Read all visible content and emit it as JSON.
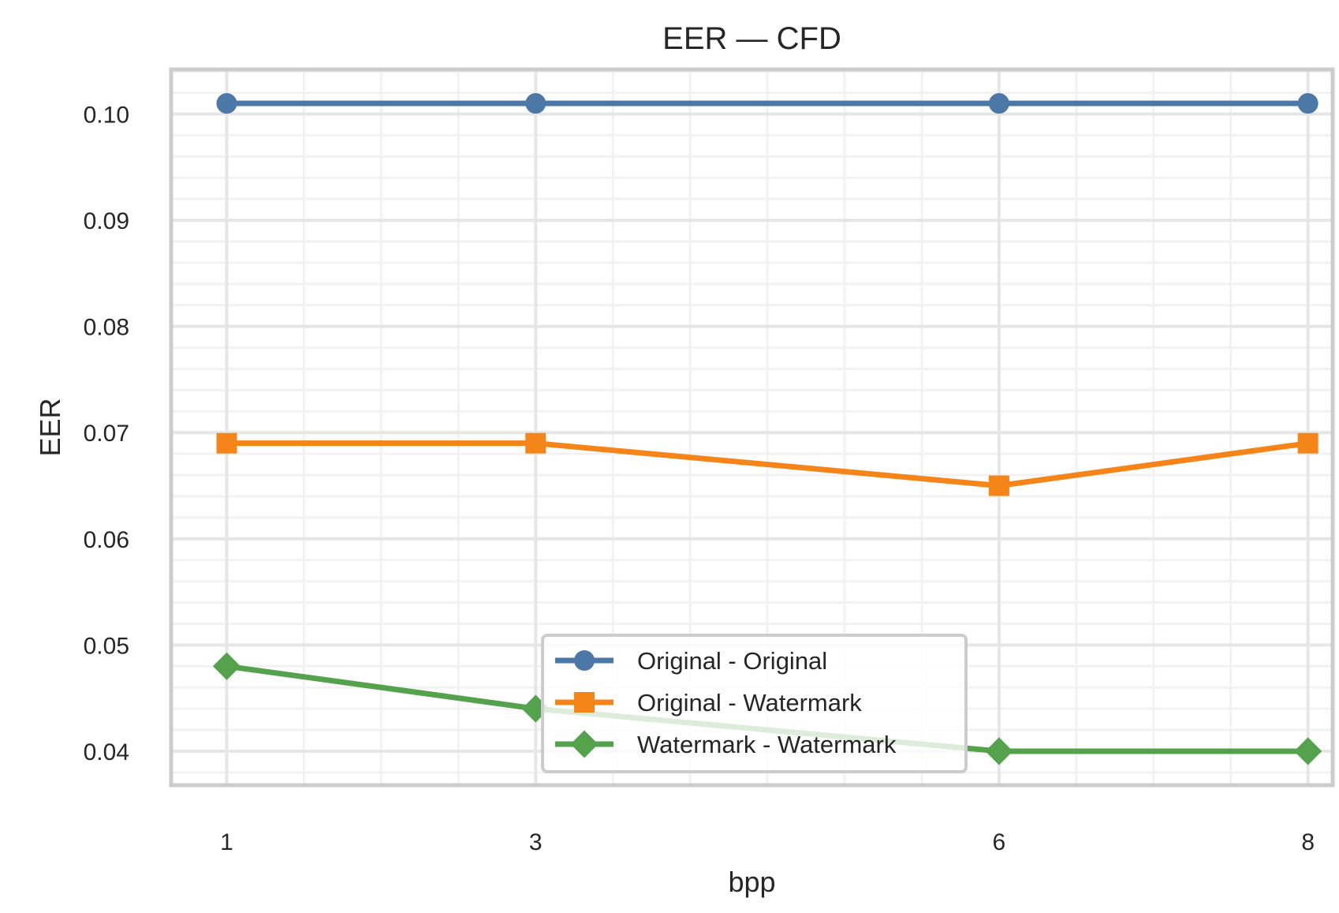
{
  "chart_data": {
    "type": "line",
    "title": "EER — CFD",
    "xlabel": "bpp",
    "ylabel": "EER",
    "x": [
      1,
      3,
      6,
      8
    ],
    "x_tick_labels": [
      "1",
      "3",
      "6",
      "8"
    ],
    "y_ticks": [
      0.04,
      0.05,
      0.06,
      0.07,
      0.08,
      0.09,
      0.1
    ],
    "y_tick_labels": [
      "0.04",
      "0.05",
      "0.06",
      "0.07",
      "0.08",
      "0.09",
      "0.10"
    ],
    "xlim": [
      0.64,
      8.16
    ],
    "ylim": [
      0.0368,
      0.1042
    ],
    "grid": true,
    "minor_grid": true,
    "legend_position": "lower-center",
    "series": [
      {
        "name": "Original - Original",
        "marker": "circle",
        "color": "#4c78a8",
        "values": [
          0.101,
          0.101,
          0.101,
          0.101
        ]
      },
      {
        "name": "Original - Watermark",
        "marker": "square",
        "color": "#f58518",
        "values": [
          0.069,
          0.069,
          0.065,
          0.069
        ]
      },
      {
        "name": "Watermark - Watermark",
        "marker": "diamond",
        "color": "#54a24b",
        "values": [
          0.048,
          0.044,
          0.04,
          0.04
        ]
      }
    ]
  }
}
